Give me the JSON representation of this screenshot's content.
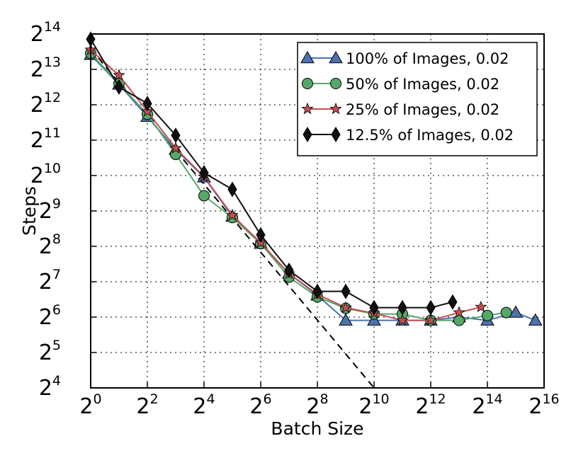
{
  "chart_data": {
    "type": "line",
    "title": "",
    "xlabel": "Batch Size",
    "ylabel": "Steps",
    "x_scale": "log2",
    "y_scale": "log2",
    "xlim": [
      1,
      65536
    ],
    "ylim": [
      16,
      16384
    ],
    "x_ticks": [
      {
        "value": 1,
        "base": "2",
        "exp": "0"
      },
      {
        "value": 4,
        "base": "2",
        "exp": "2"
      },
      {
        "value": 16,
        "base": "2",
        "exp": "4"
      },
      {
        "value": 64,
        "base": "2",
        "exp": "6"
      },
      {
        "value": 256,
        "base": "2",
        "exp": "8"
      },
      {
        "value": 1024,
        "base": "2",
        "exp": "10"
      },
      {
        "value": 4096,
        "base": "2",
        "exp": "12"
      },
      {
        "value": 16384,
        "base": "2",
        "exp": "14"
      },
      {
        "value": 65536,
        "base": "2",
        "exp": "16"
      }
    ],
    "y_ticks": [
      {
        "value": 16,
        "base": "2",
        "exp": "4"
      },
      {
        "value": 32,
        "base": "2",
        "exp": "5"
      },
      {
        "value": 64,
        "base": "2",
        "exp": "6"
      },
      {
        "value": 128,
        "base": "2",
        "exp": "7"
      },
      {
        "value": 256,
        "base": "2",
        "exp": "8"
      },
      {
        "value": 512,
        "base": "2",
        "exp": "9"
      },
      {
        "value": 1024,
        "base": "2",
        "exp": "10"
      },
      {
        "value": 2048,
        "base": "2",
        "exp": "11"
      },
      {
        "value": 4096,
        "base": "2",
        "exp": "12"
      },
      {
        "value": 8192,
        "base": "2",
        "exp": "13"
      },
      {
        "value": 16384,
        "base": "2",
        "exp": "14"
      }
    ],
    "grid": true,
    "legend_position": "top-right",
    "reference_line": {
      "style": "dashed",
      "color": "#000000",
      "x": [
        1,
        1024
      ],
      "y": [
        12288,
        12
      ]
    },
    "series": [
      {
        "name": "100% of Images, 0.02",
        "color": "#4c72b0",
        "marker": "triangle",
        "x": [
          1,
          2,
          4,
          8,
          16,
          32,
          64,
          128,
          256,
          512,
          1024,
          2048,
          4096,
          8192,
          16384,
          32768,
          53000
        ],
        "y": [
          10900,
          6100,
          3250,
          1700,
          990,
          460,
          270,
          150,
          98,
          60,
          60,
          60,
          60,
          64,
          60,
          70,
          60
        ]
      },
      {
        "name": "50% of Images, 0.02",
        "color": "#55a868",
        "marker": "circle",
        "x": [
          1,
          2,
          4,
          8,
          16,
          32,
          64,
          128,
          256,
          512,
          1024,
          2048,
          4096,
          8192,
          16384,
          26000
        ],
        "y": [
          11200,
          6200,
          3400,
          1550,
          690,
          450,
          270,
          140,
          95,
          76,
          68,
          68,
          60,
          60,
          66,
          70
        ]
      },
      {
        "name": "25% of Images, 0.02",
        "color": "#c44e52",
        "marker": "star",
        "x": [
          1,
          2,
          4,
          8,
          16,
          32,
          64,
          128,
          256,
          512,
          1024,
          2048,
          4096,
          8192,
          14000
        ],
        "y": [
          12000,
          7300,
          3600,
          1750,
          1000,
          470,
          275,
          150,
          100,
          77,
          69,
          60,
          60,
          70,
          78
        ]
      },
      {
        "name": "12.5% of Images, 0.02",
        "color": "#111111",
        "marker": "diamond",
        "x": [
          1,
          2,
          4,
          8,
          16,
          32,
          64,
          128,
          256,
          512,
          1024,
          2048,
          4096,
          7000
        ],
        "y": [
          14800,
          5800,
          4200,
          2250,
          1080,
          780,
          320,
          160,
          106,
          106,
          77,
          77,
          77,
          86
        ]
      }
    ]
  }
}
